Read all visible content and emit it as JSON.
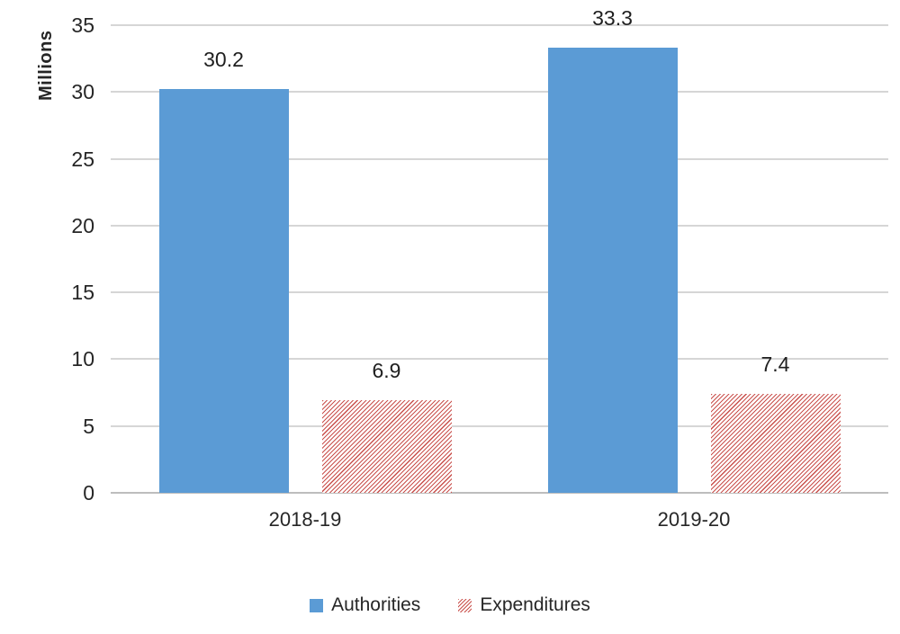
{
  "chart_data": {
    "type": "bar",
    "title": "",
    "xlabel": "",
    "ylabel": "Millions",
    "categories": [
      "2018-19",
      "2019-20"
    ],
    "series": [
      {
        "name": "Authorities",
        "values": [
          30.2,
          33.3
        ],
        "color": "#5B9BD5",
        "pattern": "solid"
      },
      {
        "name": "Expenditures",
        "values": [
          6.9,
          7.4
        ],
        "color": "#C9504C",
        "pattern": "diagonal-hatch"
      }
    ],
    "data_labels": {
      "position": "outside-end",
      "decimals": 1,
      "values": [
        [
          30.2,
          6.9
        ],
        [
          33.3,
          7.4
        ]
      ]
    },
    "ylim": [
      0,
      35
    ],
    "yticks": [
      0,
      5,
      10,
      15,
      20,
      25,
      30,
      35
    ],
    "grid": "horizontal",
    "legend_position": "bottom",
    "colors": {
      "gridline": "#d6d6d6",
      "axis_line": "#bdbdbd",
      "text": "#262626"
    }
  }
}
